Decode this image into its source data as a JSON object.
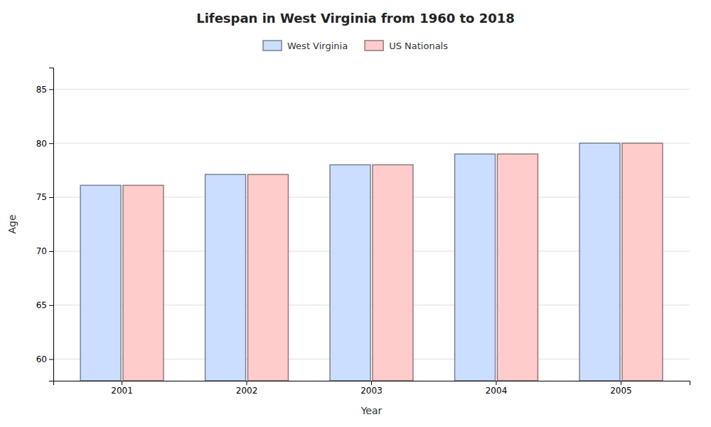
{
  "chart_data": {
    "type": "bar",
    "title": "Lifespan in West Virginia from 1960 to 2018",
    "x_label": "Year",
    "y_label": "Age",
    "categories": [
      "2001",
      "2002",
      "2003",
      "2004",
      "2005"
    ],
    "series": [
      {
        "name": "West Virginia",
        "color": "#ccdeff",
        "values": [
          76.1,
          77.1,
          78.0,
          79.0,
          80.0
        ]
      },
      {
        "name": "US Nationals",
        "color": "#ffcccc",
        "values": [
          76.1,
          77.1,
          78.0,
          79.0,
          80.0
        ]
      }
    ],
    "ylim": [
      58,
      87
    ],
    "yticks": [
      60,
      65,
      70,
      75,
      80,
      85
    ],
    "grid": true,
    "legend": "top"
  }
}
